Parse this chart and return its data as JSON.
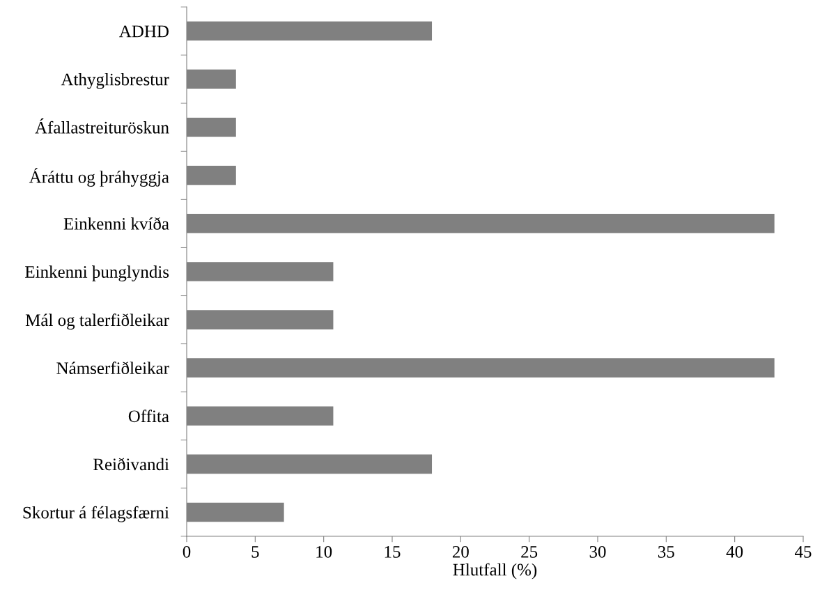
{
  "chart_data": {
    "type": "bar",
    "orientation": "horizontal",
    "xlabel": "Hlutfall (%)",
    "categories": [
      "ADHD",
      "Athyglisbrestur",
      "Áfallastreituröskun",
      "Áráttu og þráhyggja",
      "Einkenni kvíða",
      "Einkenni þunglyndis",
      "Mál og talerfiðleikar",
      "Námserfiðleikar",
      "Offita",
      "Reiðivandi",
      "Skortur á félagsfærni"
    ],
    "values": [
      17.9,
      3.6,
      3.6,
      3.6,
      42.9,
      10.7,
      10.7,
      42.9,
      10.7,
      17.9,
      7.1
    ],
    "color": "#808080",
    "xlim": [
      0,
      45
    ],
    "xticks": [
      0,
      5,
      10,
      15,
      20,
      25,
      30,
      35,
      40,
      45
    ],
    "grid": false
  }
}
